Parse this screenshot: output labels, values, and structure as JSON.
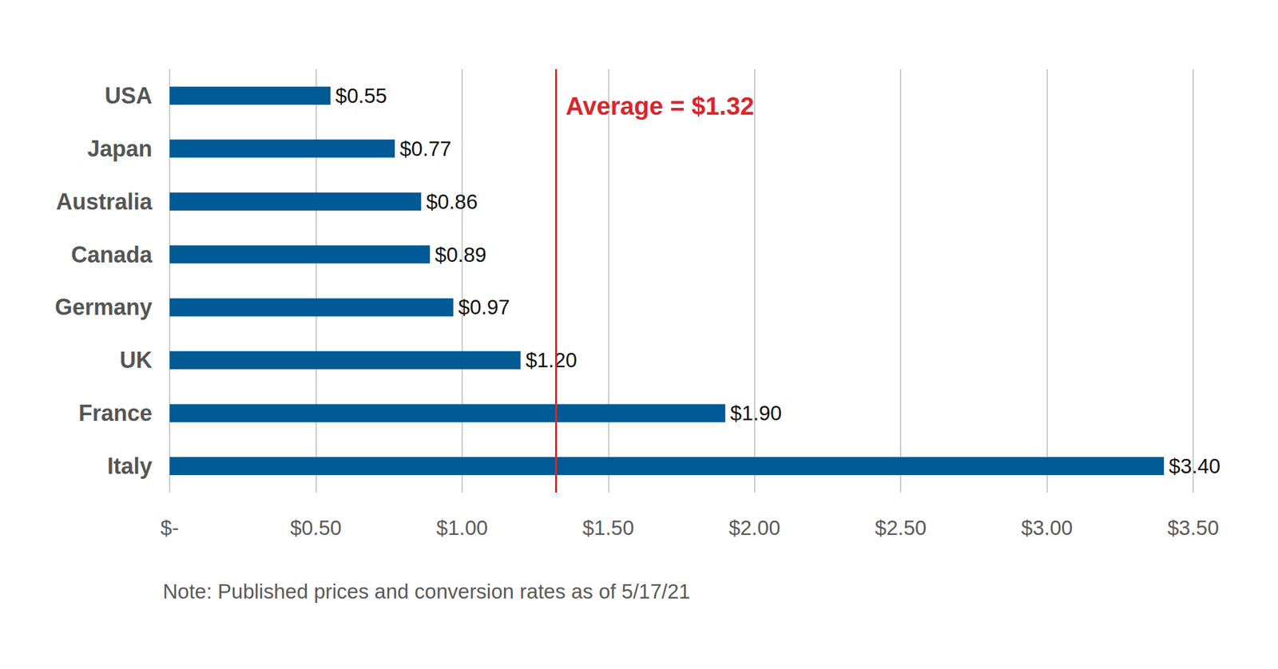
{
  "chart_data": {
    "type": "bar",
    "orientation": "horizontal",
    "categories": [
      "USA",
      "Japan",
      "Australia",
      "Canada",
      "Germany",
      "UK",
      "France",
      "Italy"
    ],
    "values": [
      0.55,
      0.77,
      0.86,
      0.89,
      0.97,
      1.2,
      1.9,
      3.4
    ],
    "value_labels": [
      "$0.55",
      "$0.77",
      "$0.86",
      "$0.89",
      "$0.97",
      "$1.20",
      "$1.90",
      "$3.40"
    ],
    "color": "#005a96",
    "data_labels": true,
    "grid": true,
    "xlim": [
      0,
      3.5
    ],
    "xticks": [
      {
        "value": 0,
        "label": "$-"
      },
      {
        "value": 0.5,
        "label": "$0.50"
      },
      {
        "value": 1,
        "label": "$1.00"
      },
      {
        "value": 1.5,
        "label": "$1.50"
      },
      {
        "value": 2,
        "label": "$2.00"
      },
      {
        "value": 2.5,
        "label": "$2.50"
      },
      {
        "value": 3,
        "label": "$3.00"
      },
      {
        "value": 3.5,
        "label": "$3.50"
      }
    ],
    "annotations": [
      {
        "text": "Average = $1.32",
        "value": 1.32,
        "color": "#d9262b"
      }
    ],
    "note": "Note: Published prices and conversion rates as of 5/17/21"
  }
}
